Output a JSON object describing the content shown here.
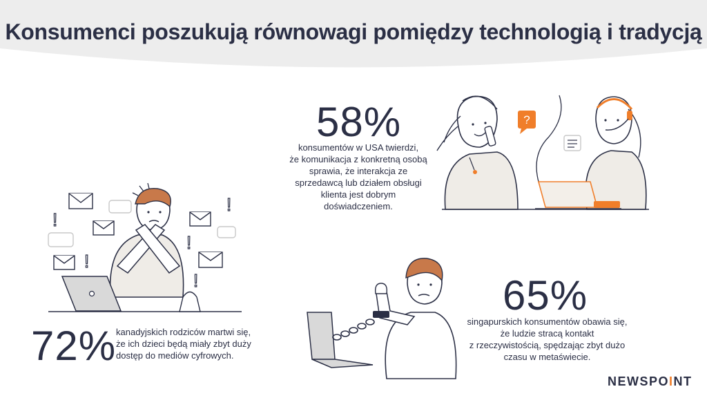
{
  "header": {
    "title": "Konsumenci poszukują równowagi pomiędzy technologią i tradycją"
  },
  "stats": [
    {
      "value": "58%",
      "lines": [
        "konsumentów w USA twierdzi,",
        "że komunikacja z konkretną osobą",
        "sprawia, że interakcja ze",
        "sprzedawcą lub działem obsługi",
        "klienta jest dobrym",
        "doświadczeniem."
      ]
    },
    {
      "value": "72%",
      "lines": [
        "kanadyjskich rodziców martwi się,",
        "że ich dzieci będą miały zbyt duży",
        "dostęp do mediów cyfrowych."
      ]
    },
    {
      "value": "65%",
      "lines": [
        "singapurskich konsumentów obawia się,",
        "że ludzie stracą kontakt",
        "z rzeczywistością, spędzając zbyt dużo",
        "czasu w metaświecie."
      ]
    }
  ],
  "icons": {
    "question": "?",
    "exclamation": "!"
  },
  "logo": {
    "left": "NEWSPO",
    "dot": "I",
    "right": "NT"
  },
  "colors": {
    "accent": "#f07e2a",
    "text": "#2b2f45",
    "header_bg": "#ededed"
  }
}
